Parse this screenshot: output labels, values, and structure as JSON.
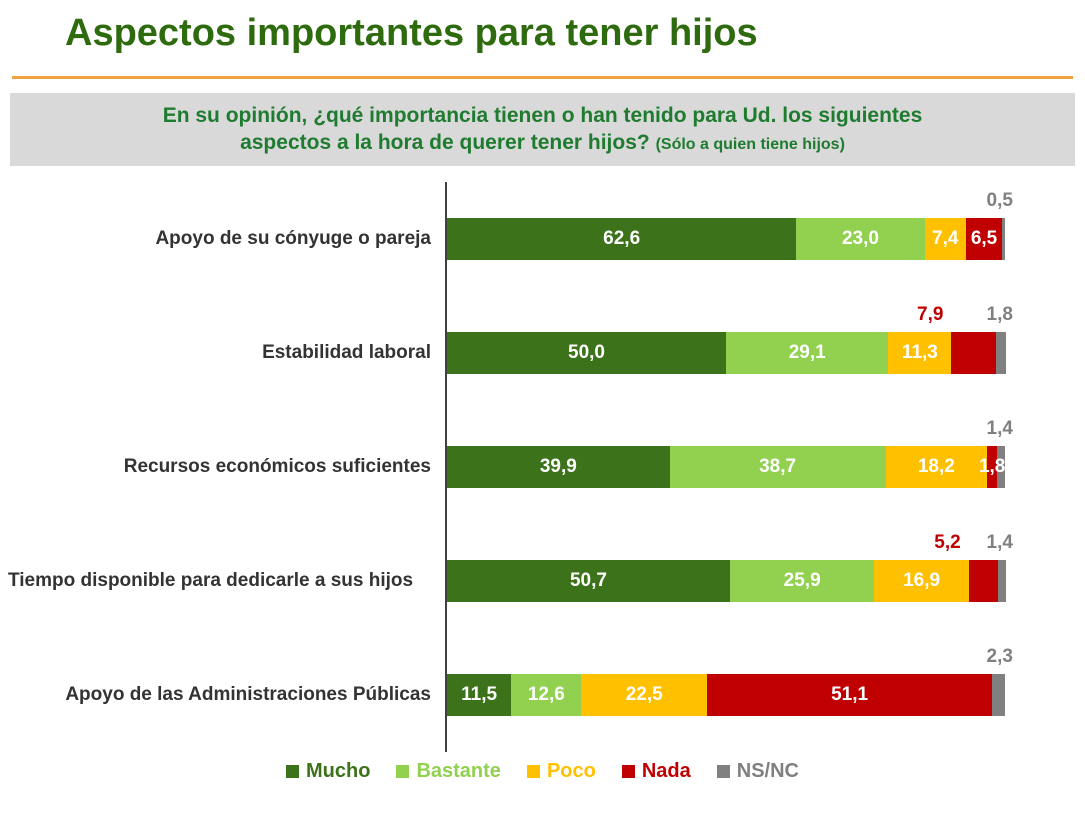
{
  "page": {
    "title": "Aspectos importantes para tener hijos",
    "question_line1": "En su opinión, ¿qué importancia tienen o han tenido para Ud. los siguientes",
    "question_line2": "aspectos a la hora de querer tener hijos?",
    "question_note": "(Sólo a quien tiene hijos)"
  },
  "colors": {
    "title_green": "#2e6b0f",
    "question_green": "#1e7b2f",
    "question_bg": "#d9d9d9",
    "divider_orange": "#efa33c",
    "axis_line": "#404040",
    "category_label": "#333333",
    "value_label_inside": "#ffffff"
  },
  "chart_data": {
    "type": "bar",
    "stacked": true,
    "orientation": "horizontal",
    "x_max": 100,
    "grid": false,
    "legend_position": "bottom",
    "categories": [
      "Apoyo de su cónyuge o pareja",
      "Estabilidad laboral",
      "Recursos económicos suficientes",
      "Tiempo disponible para dedicarle a sus hijos",
      "Apoyo de las Administraciones Públicas"
    ],
    "series": [
      {
        "name": "Mucho",
        "color": "#3c721a",
        "values": [
          62.6,
          50.0,
          39.9,
          50.7,
          11.5
        ],
        "labels": [
          "62,6",
          "50,0",
          "39,9",
          "50,7",
          "11,5"
        ],
        "label_placement": [
          "inside",
          "inside",
          "inside",
          "inside",
          "inside"
        ]
      },
      {
        "name": "Bastante",
        "color": "#92d050",
        "values": [
          23.0,
          29.1,
          38.7,
          25.9,
          12.6
        ],
        "labels": [
          "23,0",
          "29,1",
          "38,7",
          "25,9",
          "12,6"
        ],
        "label_placement": [
          "inside",
          "inside",
          "inside",
          "inside",
          "inside"
        ]
      },
      {
        "name": "Poco",
        "color": "#ffc000",
        "values": [
          7.4,
          11.3,
          18.2,
          16.9,
          22.5
        ],
        "labels": [
          "7,4",
          "11,3",
          "18,2",
          "16,9",
          "22,5"
        ],
        "label_placement": [
          "inside",
          "inside",
          "inside",
          "inside",
          "inside"
        ]
      },
      {
        "name": "Nada",
        "color": "#c00000",
        "values": [
          6.5,
          7.9,
          1.8,
          5.2,
          51.1
        ],
        "labels": [
          "6,5",
          "7,9",
          "1,8",
          "5,2",
          "51,1"
        ],
        "label_placement": [
          "inside",
          "above",
          "inside",
          "above",
          "inside"
        ]
      },
      {
        "name": "NS/NC",
        "color": "#808080",
        "values": [
          0.5,
          1.8,
          1.4,
          1.4,
          2.3
        ],
        "labels": [
          "0,5",
          "1,8",
          "1,4",
          "1,4",
          "2,3"
        ],
        "label_placement": [
          "above",
          "above",
          "above",
          "above",
          "above"
        ]
      }
    ]
  }
}
